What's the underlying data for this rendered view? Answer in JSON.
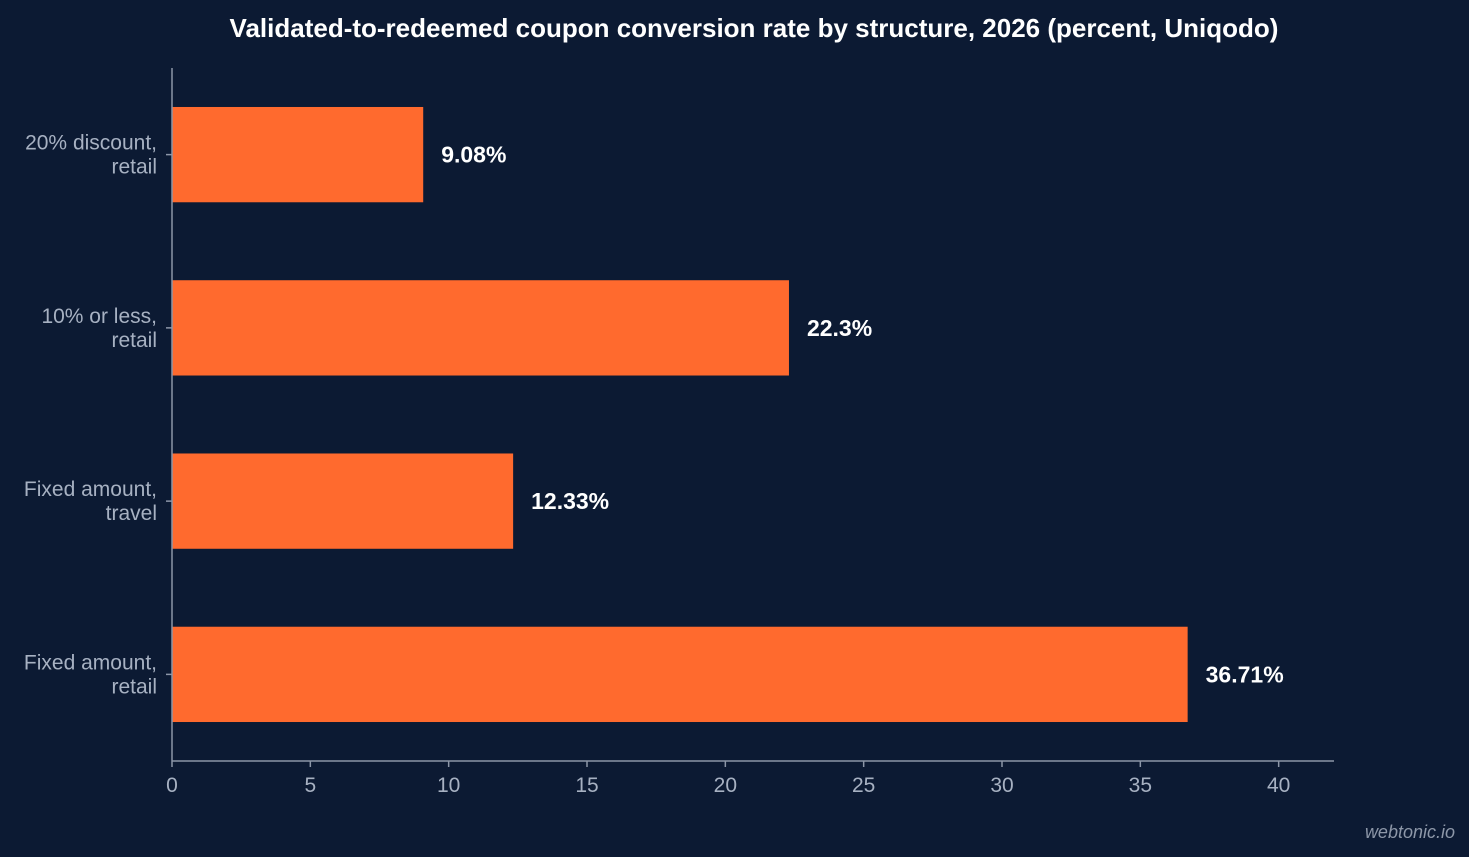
{
  "chart_data": {
    "type": "bar",
    "orientation": "horizontal",
    "title": "Validated-to-redeemed coupon conversion rate by structure, 2026 (percent, Uniqodo)",
    "categories": [
      [
        "20% discount,",
        "retail"
      ],
      [
        "10% or less,",
        "retail"
      ],
      [
        "Fixed amount,",
        "travel"
      ],
      [
        "Fixed amount,",
        "retail"
      ]
    ],
    "values": [
      9.08,
      22.3,
      12.33,
      36.71
    ],
    "value_labels": [
      "9.08%",
      "22.3%",
      "12.33%",
      "36.71%"
    ],
    "xlim": [
      0,
      42
    ],
    "xticks": [
      0,
      5,
      10,
      15,
      20,
      25,
      30,
      35,
      40
    ],
    "grid": false,
    "legend": "none"
  },
  "colors": {
    "background": "#0c1a33",
    "bar": "#ff6a2e",
    "title": "#ffffff",
    "value_label": "#ffffff",
    "category_label": "#a7b1c2",
    "tick_label": "#a7b1c2",
    "axis": "#8c96a8"
  },
  "watermark": "webtonic.io"
}
